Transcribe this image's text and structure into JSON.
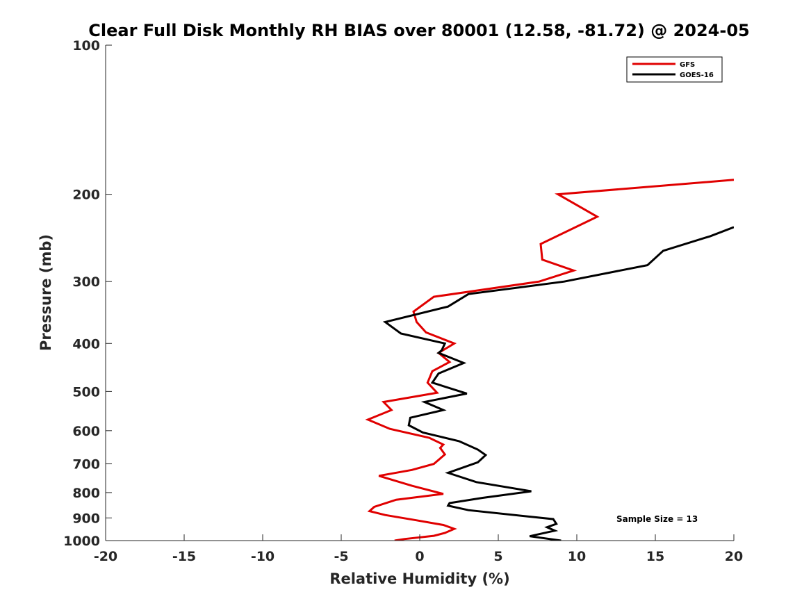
{
  "chart_data": {
    "type": "line",
    "title": "Clear Full Disk Monthly RH BIAS over 80001 (12.58, -81.72) @ 2024-05",
    "xlabel": "Relative Humidity (%)",
    "ylabel": "Pressure (mb)",
    "xlim": [
      -20,
      20
    ],
    "ylim": [
      100,
      1000
    ],
    "yscale": "log",
    "y_reversed": true,
    "xticks": [
      "-20",
      "-15",
      "-10",
      "-5",
      "0",
      "5",
      "10",
      "15",
      "20"
    ],
    "yticks": [
      "100",
      "200",
      "300",
      "400",
      "500",
      "600",
      "700",
      "800",
      "900",
      "1000"
    ],
    "legend_position": "top-right",
    "annotation": "Sample Size = 13",
    "colors": {
      "GFS": "#e00000",
      "GOES-16": "#000000"
    },
    "series": [
      {
        "name": "GFS",
        "color": "#e00000",
        "points": [
          [
            20.0,
            187
          ],
          [
            8.8,
            200
          ],
          [
            11.3,
            222
          ],
          [
            7.7,
            252
          ],
          [
            7.8,
            271
          ],
          [
            9.8,
            285
          ],
          [
            7.6,
            300
          ],
          [
            0.9,
            322
          ],
          [
            -0.4,
            345
          ],
          [
            -0.2,
            362
          ],
          [
            0.4,
            380
          ],
          [
            2.2,
            400
          ],
          [
            1.2,
            418
          ],
          [
            1.9,
            436
          ],
          [
            0.8,
            455
          ],
          [
            0.5,
            480
          ],
          [
            1.1,
            503
          ],
          [
            -2.3,
            525
          ],
          [
            -1.8,
            545
          ],
          [
            -3.3,
            570
          ],
          [
            -1.9,
            595
          ],
          [
            0.6,
            620
          ],
          [
            1.5,
            640
          ],
          [
            1.3,
            650
          ],
          [
            1.6,
            670
          ],
          [
            0.9,
            700
          ],
          [
            -0.5,
            720
          ],
          [
            -2.6,
            740
          ],
          [
            -0.5,
            775
          ],
          [
            1.5,
            805
          ],
          [
            -1.5,
            827
          ],
          [
            -2.9,
            855
          ],
          [
            -3.2,
            872
          ],
          [
            -2.2,
            888
          ],
          [
            -0.2,
            910
          ],
          [
            1.5,
            930
          ],
          [
            2.2,
            947
          ],
          [
            1.6,
            965
          ],
          [
            0.9,
            978
          ],
          [
            -1.0,
            993
          ],
          [
            -1.6,
            1000
          ]
        ]
      },
      {
        "name": "GOES-16",
        "color": "#000000",
        "points": [
          [
            20.0,
            233
          ],
          [
            18.5,
            243
          ],
          [
            15.5,
            260
          ],
          [
            14.5,
            278
          ],
          [
            9.2,
            300
          ],
          [
            3.1,
            318
          ],
          [
            1.8,
            337
          ],
          [
            -2.2,
            362
          ],
          [
            -1.2,
            382
          ],
          [
            1.6,
            400
          ],
          [
            1.4,
            413
          ],
          [
            1.2,
            418
          ],
          [
            2.8,
            438
          ],
          [
            1.2,
            460
          ],
          [
            0.8,
            480
          ],
          [
            3.0,
            505
          ],
          [
            0.3,
            525
          ],
          [
            1.5,
            545
          ],
          [
            -0.6,
            565
          ],
          [
            -0.7,
            585
          ],
          [
            0.2,
            605
          ],
          [
            2.5,
            630
          ],
          [
            3.7,
            655
          ],
          [
            4.2,
            672
          ],
          [
            3.7,
            695
          ],
          [
            1.8,
            730
          ],
          [
            3.6,
            762
          ],
          [
            7.1,
            795
          ],
          [
            4.0,
            820
          ],
          [
            1.9,
            840
          ],
          [
            1.8,
            850
          ],
          [
            3.1,
            868
          ],
          [
            8.5,
            905
          ],
          [
            8.7,
            925
          ],
          [
            8.1,
            940
          ],
          [
            8.6,
            955
          ],
          [
            7.0,
            980
          ],
          [
            9.0,
            1000
          ]
        ]
      }
    ]
  }
}
